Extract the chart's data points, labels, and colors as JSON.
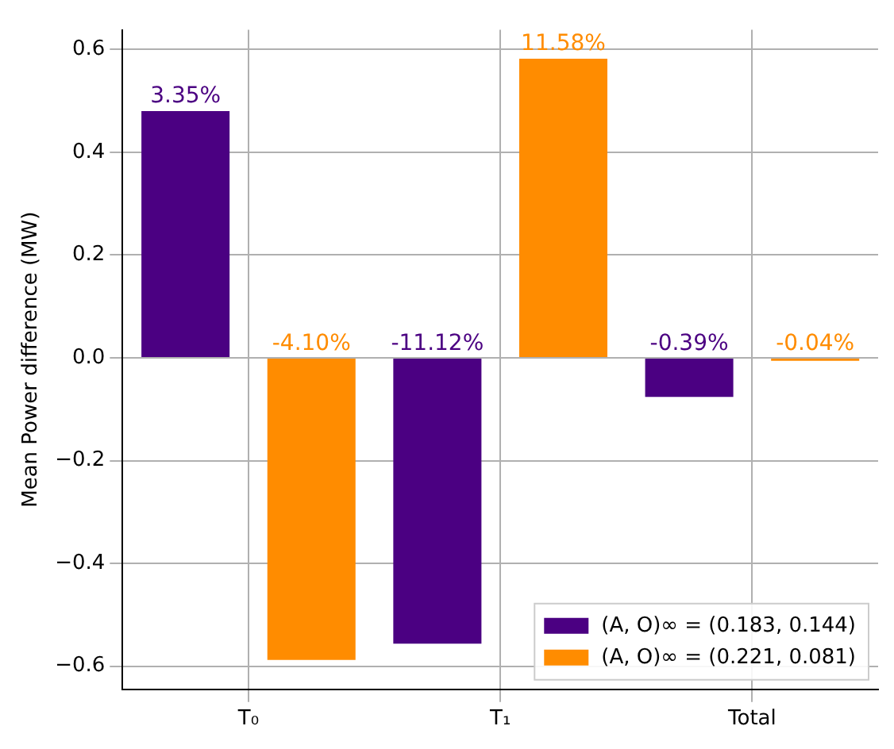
{
  "chart_data": {
    "type": "bar",
    "ylabel": "Mean Power difference (MW)",
    "categories": [
      "T₀",
      "T₁",
      "Total"
    ],
    "series": [
      {
        "name": "(A, O)∞ = (0.183, 0.144)",
        "color": "#4b0082",
        "values": [
          0.48,
          -0.556,
          -0.076
        ]
      },
      {
        "name": "(A, O)∞ = (0.221, 0.081)",
        "color": "#ff8c00",
        "values": [
          -0.588,
          0.582,
          -0.006
        ]
      }
    ],
    "annotations": [
      "3.35%",
      "-11.12%",
      "-0.39%",
      "-4.10%",
      "11.58%",
      "-0.04%"
    ],
    "ylim": [
      -0.645,
      0.638
    ],
    "yticks": [
      {
        "value": -0.6,
        "label": "−0.6"
      },
      {
        "value": -0.4,
        "label": "−0.4"
      },
      {
        "value": -0.2,
        "label": "−0.2"
      },
      {
        "value": 0,
        "label": "0.0"
      },
      {
        "value": 0.2,
        "label": "0.2"
      },
      {
        "value": 0.4,
        "label": "0.4"
      },
      {
        "value": 0.6,
        "label": "0.6"
      }
    ],
    "grid": true,
    "legend": "bottom right"
  }
}
